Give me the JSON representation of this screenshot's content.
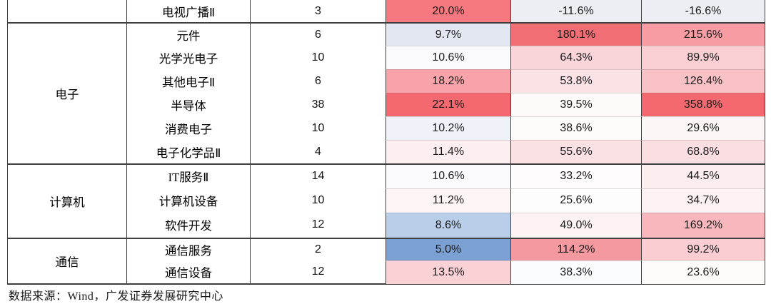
{
  "chart_data": {
    "type": "table",
    "description": "heatmap-styled sector table",
    "groups": [
      {
        "group": "",
        "rows": [
          {
            "name": "电视广播Ⅱ",
            "count": "3",
            "values": [
              "20.0%",
              "-11.6%",
              "-16.6%"
            ],
            "colors": [
              "#F5797F",
              "#ECEEF4",
              "#ECEEF4"
            ]
          }
        ]
      },
      {
        "group": "电子",
        "rows": [
          {
            "name": "元件",
            "count": "6",
            "values": [
              "9.7%",
              "180.1%",
              "215.6%"
            ],
            "colors": [
              "#E3E7F2",
              "#F26E75",
              "#F79CA2"
            ]
          },
          {
            "name": "光学光电子",
            "count": "10",
            "values": [
              "10.6%",
              "64.3%",
              "89.9%"
            ],
            "colors": [
              "#FAFAFC",
              "#F9D5D9",
              "#F9CFD3"
            ]
          },
          {
            "name": "其他电子Ⅱ",
            "count": "6",
            "values": [
              "18.2%",
              "53.8%",
              "126.4%"
            ],
            "colors": [
              "#F7A3A9",
              "#FBE3E5",
              "#F8C1C6"
            ]
          },
          {
            "name": "半导体",
            "count": "38",
            "values": [
              "22.1%",
              "39.5%",
              "358.8%"
            ],
            "colors": [
              "#F4696F",
              "#FEFAFA",
              "#F4696F"
            ]
          },
          {
            "name": "消费电子",
            "count": "10",
            "values": [
              "10.2%",
              "38.6%",
              "29.6%"
            ],
            "colors": [
              "#EFF3F9",
              "#FEFBFB",
              "#FDF6F7"
            ]
          },
          {
            "name": "电子化学品Ⅱ",
            "count": "4",
            "values": [
              "11.4%",
              "55.6%",
              "68.8%"
            ],
            "colors": [
              "#FDEFF1",
              "#FBE1E3",
              "#FADEE1"
            ]
          }
        ]
      },
      {
        "group": "计算机",
        "rows": [
          {
            "name": "IT服务Ⅱ",
            "count": "14",
            "values": [
              "10.6%",
              "33.2%",
              "44.5%"
            ],
            "colors": [
              "#FBFBFD",
              "#FEFCFC",
              "#FCEDEF"
            ]
          },
          {
            "name": "计算机设备",
            "count": "10",
            "values": [
              "11.2%",
              "25.6%",
              "34.7%"
            ],
            "colors": [
              "#FEF5F6",
              "#FDFDFE",
              "#FDF2F3"
            ]
          },
          {
            "name": "软件开发",
            "count": "12",
            "values": [
              "8.6%",
              "49.0%",
              "169.2%"
            ],
            "colors": [
              "#B9CEE9",
              "#FDF3F4",
              "#F7B7BC"
            ]
          }
        ]
      },
      {
        "group": "通信",
        "rows": [
          {
            "name": "通信服务",
            "count": "2",
            "values": [
              "5.0%",
              "114.2%",
              "99.2%"
            ],
            "colors": [
              "#7AA0D4",
              "#F3999F",
              "#F9CDD2"
            ]
          },
          {
            "name": "通信设备",
            "count": "12",
            "values": [
              "13.5%",
              "38.3%",
              "23.6%"
            ],
            "colors": [
              "#FAD2D6",
              "#FBFCFE",
              "#FEFBFB"
            ]
          }
        ]
      }
    ]
  },
  "footer": {
    "source": "数据来源：Wind，广发证券发展研究中心"
  }
}
